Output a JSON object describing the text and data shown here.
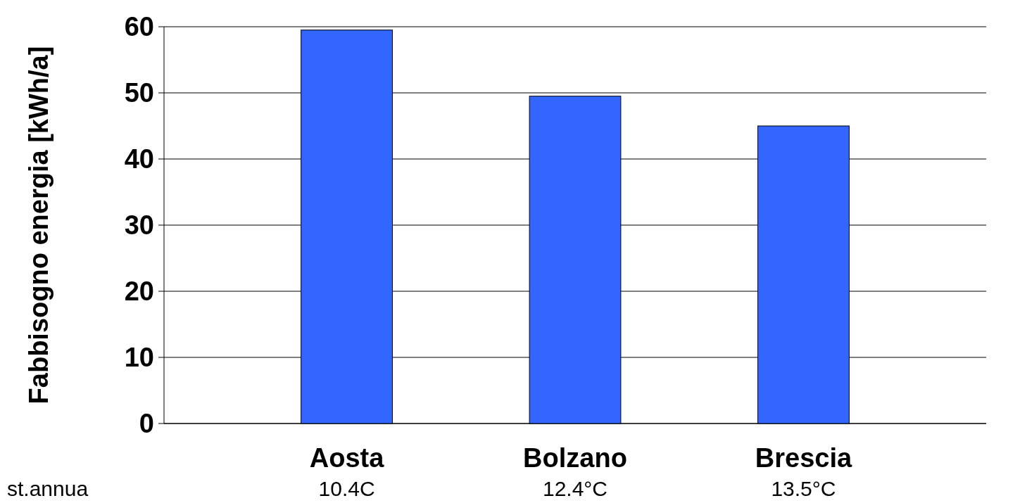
{
  "chart_data": {
    "type": "bar",
    "ylabel": "Fabbisogno energia [kWh/a]",
    "categories": [
      "Aosta",
      "Bolzano",
      "Brescia"
    ],
    "values": [
      59.5,
      49.5,
      45
    ],
    "color": "#3366ff",
    "ylim": [
      0,
      60
    ],
    "yticks": [
      0,
      10,
      20,
      30,
      40,
      50,
      60
    ],
    "grid": "y",
    "annotations": [
      "st.annua",
      "10.4C",
      "12.4°C",
      "13.5°C"
    ]
  }
}
